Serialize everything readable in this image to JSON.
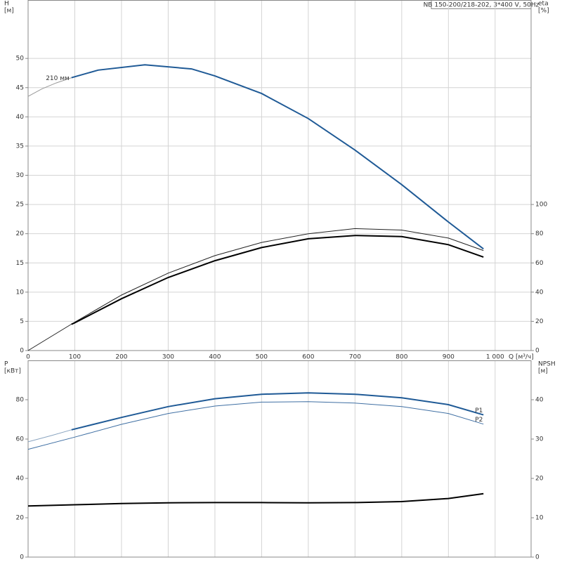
{
  "chart_data": [
    {
      "type": "line",
      "title": "NB 150-200/218-202, 3*400 V, 50Hz",
      "ylabel": "H",
      "yunit": "[м]",
      "y2label": "eta",
      "y2unit": "[%]",
      "xlabel": "Q [м³/ч]",
      "annotation": "210 мм",
      "xlim": [
        0,
        1077
      ],
      "xticks": [
        0,
        100,
        200,
        300,
        400,
        500,
        600,
        700,
        800,
        900,
        {
          "value": 1000,
          "label": "1 000"
        }
      ],
      "ylim": [
        0,
        60
      ],
      "yticks": [
        0,
        5,
        10,
        15,
        20,
        25,
        30,
        35,
        40,
        45,
        50
      ],
      "y2lim": [
        0,
        240
      ],
      "y2ticks": [
        0,
        20,
        40,
        60,
        80,
        100
      ],
      "grid": true,
      "series": [
        {
          "color": "#999999",
          "linewidth": 1,
          "x": [
            0,
            30,
            60,
            93
          ],
          "values": [
            43.5,
            44.8,
            45.8,
            46.7
          ]
        },
        {
          "color": "#1f5a96",
          "linewidth": 2,
          "x": [
            93,
            150,
            250,
            350,
            400,
            500,
            600,
            700,
            800,
            900,
            975
          ],
          "values": [
            46.7,
            48.0,
            48.9,
            48.2,
            47.0,
            44.0,
            39.7,
            34.3,
            28.4,
            22.0,
            17.4
          ]
        },
        {
          "color": "#222222",
          "linewidth": 1,
          "axis": "y2",
          "x": [
            0,
            100,
            200,
            300,
            400,
            500,
            600,
            700,
            800,
            900,
            975
          ],
          "values": [
            0,
            19.5,
            38,
            53,
            65,
            74,
            80,
            83.5,
            82.5,
            77,
            68.5
          ]
        },
        {
          "color": "#000000",
          "linewidth": 2,
          "axis": "y2",
          "x": [
            93,
            100,
            200,
            300,
            400,
            500,
            600,
            700,
            800,
            900,
            975
          ],
          "values": [
            18,
            19,
            35.5,
            50,
            61.5,
            70.5,
            76.5,
            78.8,
            78,
            72.5,
            64
          ]
        }
      ]
    },
    {
      "type": "line",
      "ylabel": "P",
      "yunit": "[кВт]",
      "y2label": "NPSH",
      "y2unit": "[м]",
      "xlim": [
        0,
        1077
      ],
      "ylim": [
        0,
        100
      ],
      "yticks": [
        0,
        20,
        40,
        60,
        80
      ],
      "y2lim": [
        0,
        50
      ],
      "y2ticks": [
        0,
        10,
        20,
        30,
        40
      ],
      "series": [
        {
          "color": "#8aa4c0",
          "linewidth": 1,
          "x": [
            0,
            50,
            93
          ],
          "values": [
            58.6,
            61.8,
            64.7
          ]
        },
        {
          "name": "P1",
          "color": "#1f5a96",
          "linewidth": 2,
          "x": [
            93,
            200,
            300,
            400,
            500,
            600,
            700,
            800,
            900,
            975
          ],
          "values": [
            64.7,
            71,
            76.5,
            80.5,
            82.8,
            83.5,
            82.8,
            81,
            77.5,
            72.3
          ]
        },
        {
          "name": "P2",
          "color": "#3f6fa3",
          "linewidth": 1,
          "x": [
            0,
            100,
            200,
            300,
            400,
            500,
            600,
            700,
            800,
            900,
            975
          ],
          "values": [
            54.8,
            61,
            67.5,
            73,
            76.8,
            78.8,
            79,
            78.3,
            76.5,
            73,
            67.6
          ]
        },
        {
          "color": "#000000",
          "linewidth": 2,
          "axis": "y2",
          "x": [
            0,
            100,
            200,
            300,
            400,
            500,
            600,
            700,
            800,
            900,
            975
          ],
          "values": [
            13,
            13.3,
            13.6,
            13.8,
            13.85,
            13.85,
            13.8,
            13.85,
            14.1,
            14.9,
            16.1
          ]
        }
      ]
    }
  ]
}
